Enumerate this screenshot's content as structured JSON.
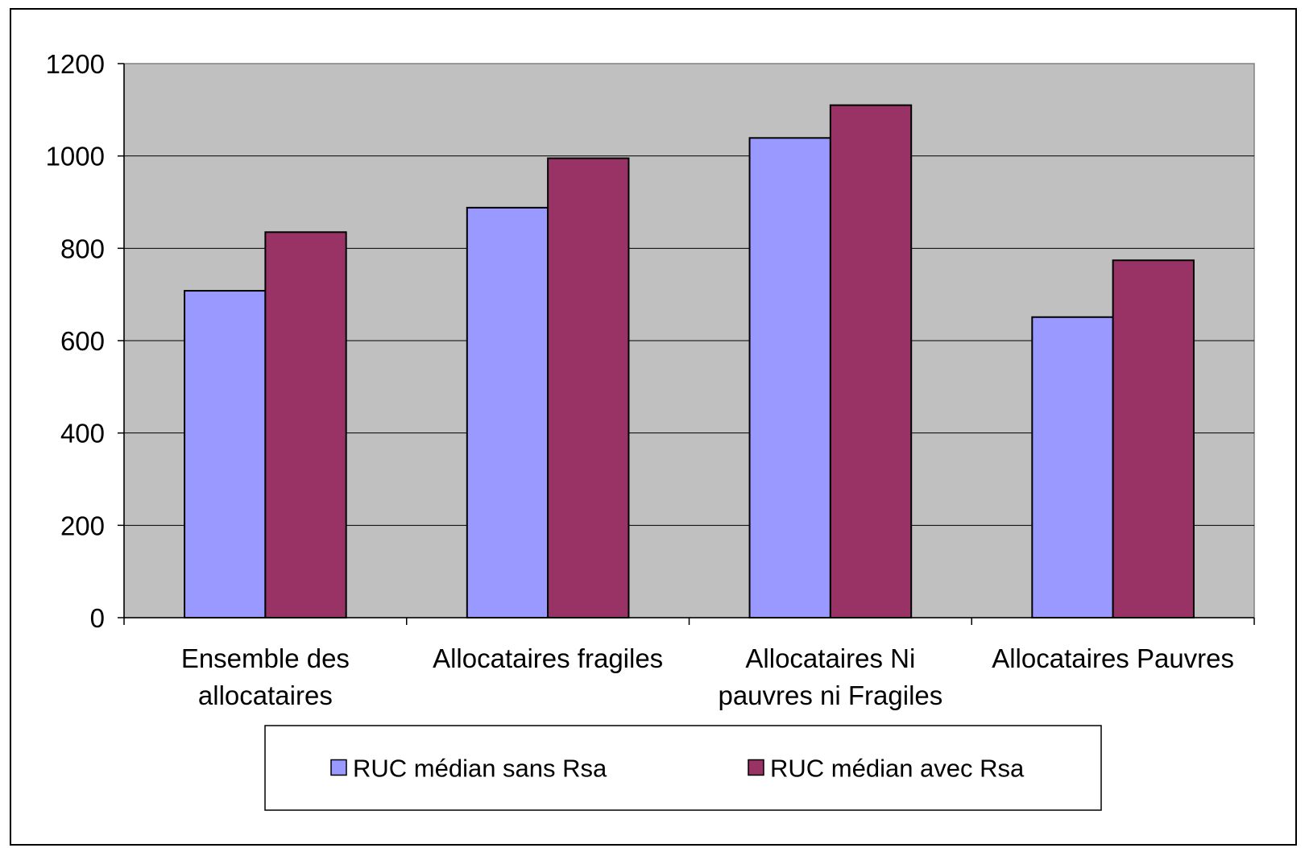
{
  "chart_data": {
    "type": "bar",
    "categories": [
      [
        "Ensemble des",
        "allocataires"
      ],
      [
        "Allocataires fragiles"
      ],
      [
        "Allocataires Ni",
        "pauvres ni Fragiles"
      ],
      [
        "Allocataires Pauvres"
      ]
    ],
    "series": [
      {
        "name": "RUC médian sans Rsa",
        "values": [
          708,
          888,
          1039,
          651
        ],
        "color": "#9999ff"
      },
      {
        "name": "RUC médian avec Rsa",
        "values": [
          835,
          995,
          1110,
          774
        ],
        "color": "#993366"
      }
    ],
    "ylim": [
      0,
      1200
    ],
    "yticks": [
      "0",
      "200",
      "400",
      "600",
      "800",
      "1000",
      "1200"
    ],
    "grid": true,
    "plot_background": "#c0c0c0",
    "legend_position": "bottom"
  }
}
